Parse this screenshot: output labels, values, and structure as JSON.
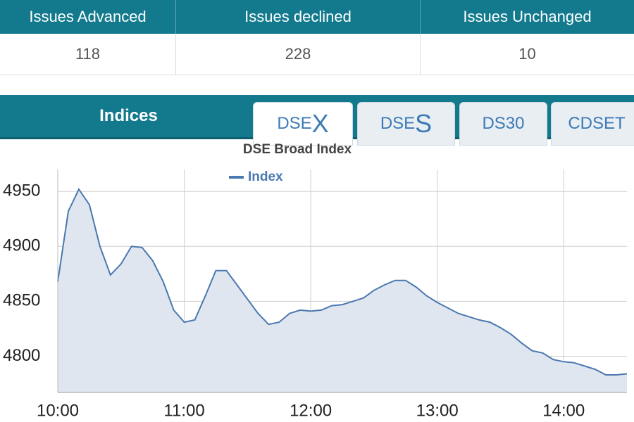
{
  "stats": {
    "headers": [
      "Issues Advanced",
      "Issues declined",
      "Issues Unchanged"
    ],
    "values": [
      "118",
      "228",
      "10"
    ]
  },
  "tabs": {
    "section": "Indices",
    "items": [
      {
        "prefix": "DSE",
        "suffix": "X"
      },
      {
        "prefix": "DSE",
        "suffix": "S"
      },
      {
        "label": "DS30"
      },
      {
        "label": "CDSET"
      }
    ]
  },
  "chart_data": {
    "type": "area",
    "title": "DSE Broad Index",
    "x": [
      "10:00",
      "10:05",
      "10:10",
      "10:15",
      "10:20",
      "10:25",
      "10:30",
      "10:35",
      "10:40",
      "10:45",
      "10:50",
      "10:55",
      "11:00",
      "11:05",
      "11:10",
      "11:15",
      "11:20",
      "11:25",
      "11:30",
      "11:35",
      "11:40",
      "11:45",
      "11:50",
      "11:55",
      "12:00",
      "12:05",
      "12:10",
      "12:15",
      "12:20",
      "12:25",
      "12:30",
      "12:35",
      "12:40",
      "12:45",
      "12:50",
      "12:55",
      "13:00",
      "13:05",
      "13:10",
      "13:15",
      "13:20",
      "13:25",
      "13:30",
      "13:35",
      "13:40",
      "13:45",
      "13:50",
      "13:55",
      "14:00",
      "14:05",
      "14:10",
      "14:15",
      "14:20",
      "14:25",
      "14:30"
    ],
    "series": [
      {
        "name": "Index",
        "color": "#4a78b0",
        "values": [
          4868,
          4932,
          4952,
          4938,
          4900,
          4874,
          4884,
          4900,
          4899,
          4887,
          4868,
          4842,
          4831,
          4833,
          4855,
          4878,
          4878,
          4865,
          4852,
          4839,
          4829,
          4831,
          4839,
          4842,
          4841,
          4842,
          4846,
          4847,
          4850,
          4853,
          4860,
          4865,
          4869,
          4869,
          4863,
          4855,
          4849,
          4844,
          4839,
          4836,
          4833,
          4831,
          4826,
          4820,
          4812,
          4805,
          4803,
          4797,
          4795,
          4794,
          4791,
          4788,
          4783,
          4783,
          4784
        ]
      }
    ],
    "xlim": [
      "10:00",
      "14:30"
    ],
    "xticks": [
      "10:00",
      "11:00",
      "12:00",
      "13:00",
      "14:00"
    ],
    "ylim": [
      4767,
      4970
    ],
    "yticks": [
      4800,
      4850,
      4900,
      4950
    ],
    "grid": true,
    "area_color": "#dfe6ef"
  }
}
